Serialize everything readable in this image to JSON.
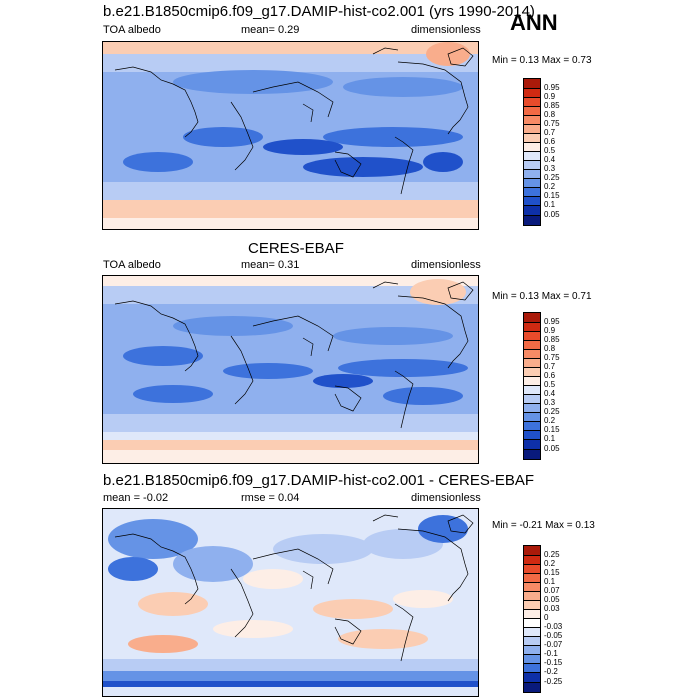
{
  "season": "ANN",
  "panels": [
    {
      "title": "b.e21.B1850cmip6.f09_g17.DAMIP-hist-co2.001 (yrs 1990-2014)",
      "left_label": "TOA albedo",
      "stat": "mean=   0.29",
      "units": "dimensionless",
      "minmax": "Min =  0.13 Max =  0.73",
      "levels": [
        "0.95",
        "0.9",
        "0.85",
        "0.8",
        "0.75",
        "0.7",
        "0.6",
        "0.5",
        "0.4",
        "0.3",
        "0.25",
        "0.2",
        "0.15",
        "0.1",
        "0.05"
      ],
      "colors": [
        "#aa1a0a",
        "#cf2a12",
        "#e84b2b",
        "#f26a45",
        "#f78b66",
        "#f9ad8c",
        "#fbcdb3",
        "#fdeee6",
        "#dfe8fa",
        "#b8ccf4",
        "#8fb0ee",
        "#6593e6",
        "#3d72dc",
        "#2051ca",
        "#0e30a8",
        "#091a7c"
      ]
    },
    {
      "title": "CERES-EBAF",
      "left_label": "TOA albedo",
      "stat": "mean=   0.31",
      "units": "dimensionless",
      "minmax": "Min =  0.13 Max =  0.71",
      "levels": [
        "0.95",
        "0.9",
        "0.85",
        "0.8",
        "0.75",
        "0.7",
        "0.6",
        "0.5",
        "0.4",
        "0.3",
        "0.25",
        "0.2",
        "0.15",
        "0.1",
        "0.05"
      ],
      "colors": [
        "#aa1a0a",
        "#cf2a12",
        "#e84b2b",
        "#f26a45",
        "#f78b66",
        "#f9ad8c",
        "#fbcdb3",
        "#fdeee6",
        "#dfe8fa",
        "#b8ccf4",
        "#8fb0ee",
        "#6593e6",
        "#3d72dc",
        "#2051ca",
        "#0e30a8",
        "#091a7c"
      ]
    },
    {
      "title": "b.e21.B1850cmip6.f09_g17.DAMIP-hist-co2.001 - CERES-EBAF",
      "left_label": "mean =  -0.02",
      "stat": "rmse =   0.04",
      "units": "dimensionless",
      "minmax": "Min =  -0.21 Max =  0.13",
      "levels": [
        "0.25",
        "0.2",
        "0.15",
        "0.1",
        "0.07",
        "0.05",
        "0.03",
        "0",
        "-0.03",
        "-0.05",
        "-0.07",
        "-0.1",
        "-0.15",
        "-0.2",
        "-0.25"
      ],
      "colors": [
        "#aa1a0a",
        "#cf2a12",
        "#e84b2b",
        "#f26a45",
        "#f78b66",
        "#f9ad8c",
        "#fbcdb3",
        "#fdeee6",
        "#ffffff",
        "#dfe8fa",
        "#b8ccf4",
        "#8fb0ee",
        "#6593e6",
        "#3d72dc",
        "#0e30a8",
        "#091a7c"
      ]
    }
  ]
}
